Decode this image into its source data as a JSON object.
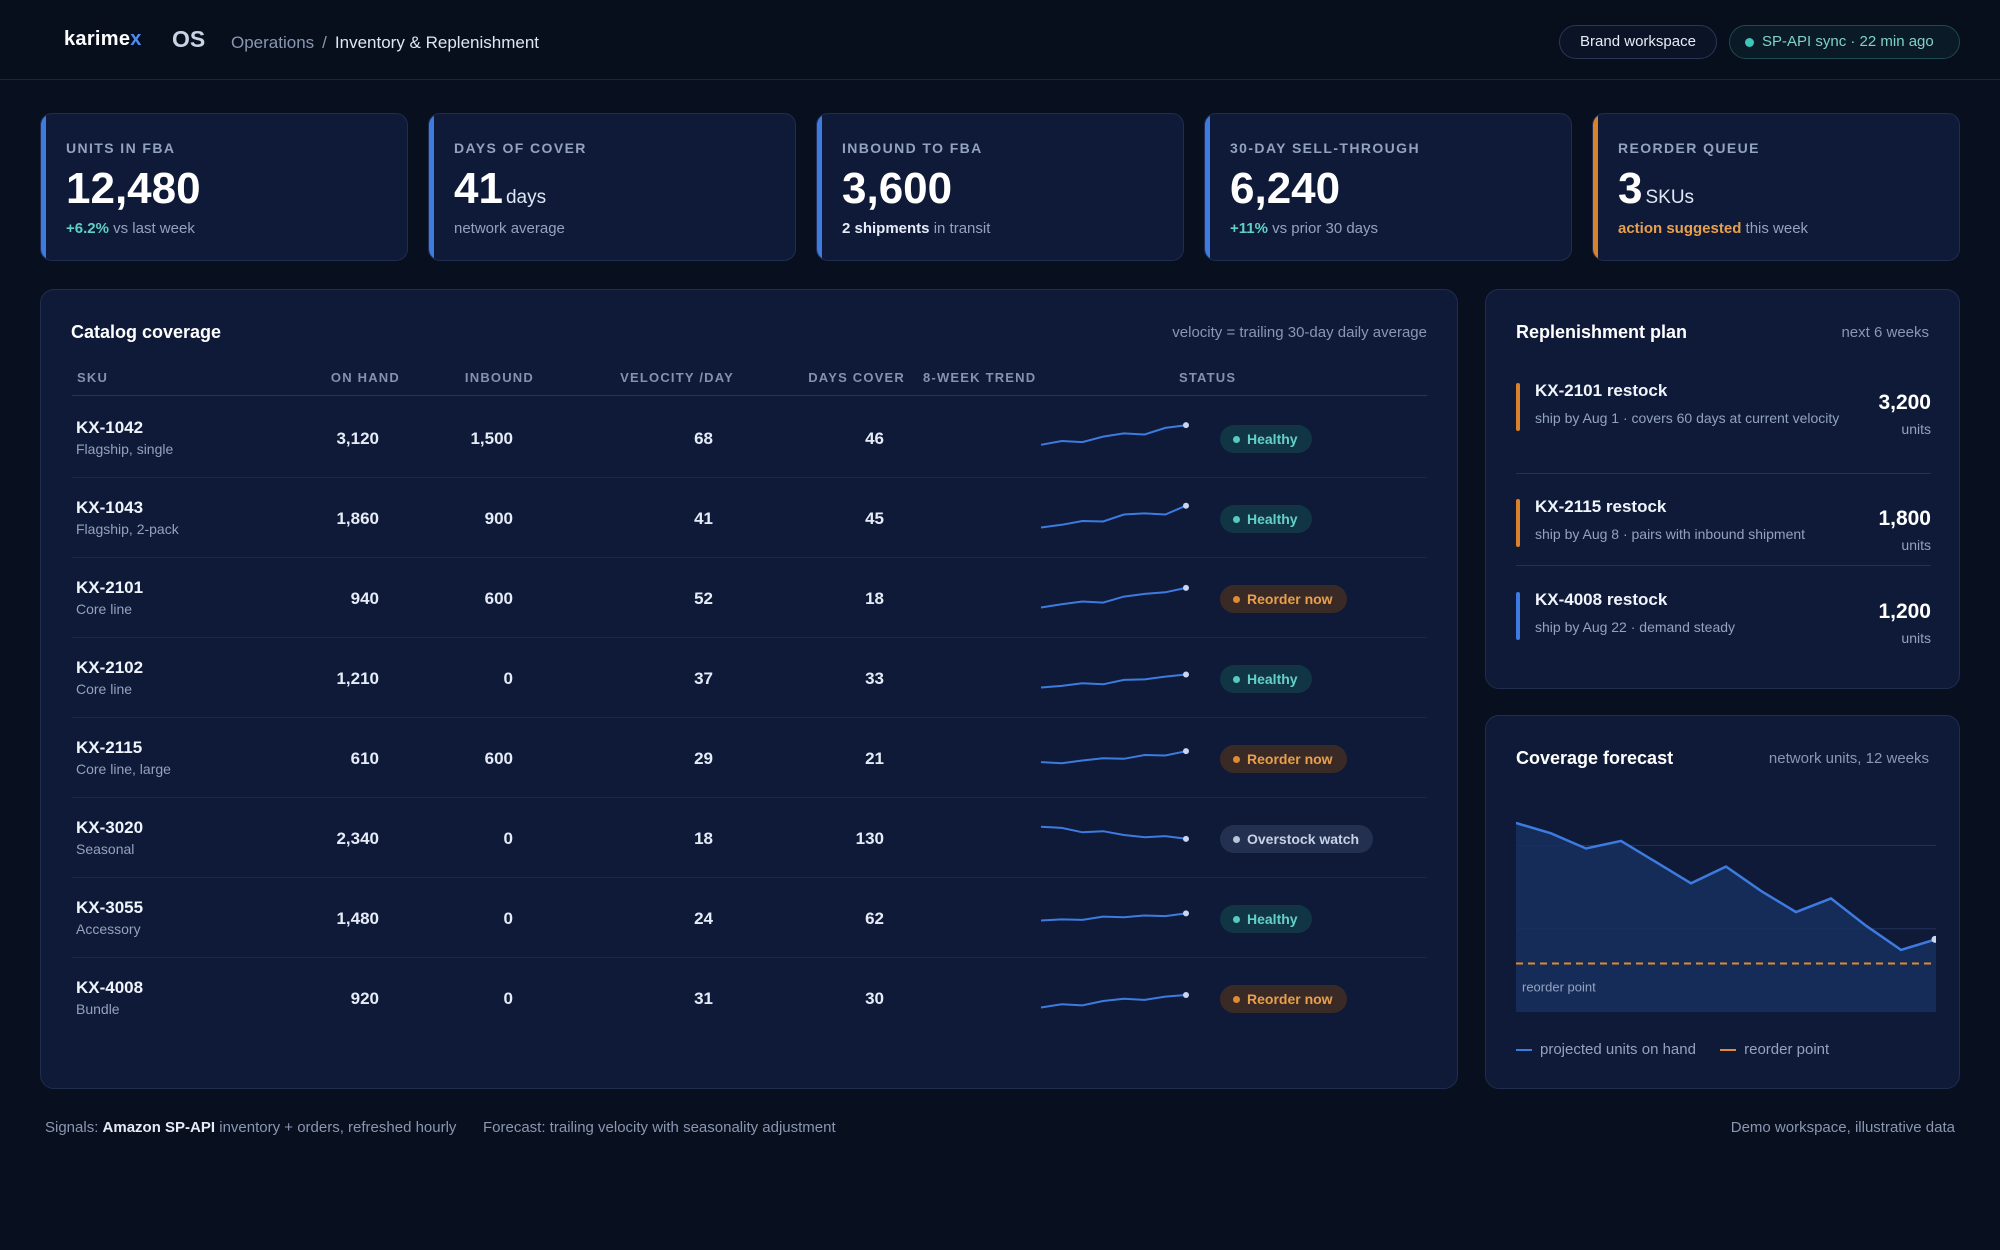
{
  "brand": {
    "name_main": "karime",
    "name_accent": "x",
    "os": "OS"
  },
  "breadcrumb": {
    "parent": "Operations",
    "separator": "/",
    "current": "Inventory & Replenishment"
  },
  "header": {
    "workspace": "Brand workspace",
    "sync": "SP-API sync · 22 min ago"
  },
  "kpis": [
    {
      "label": "UNITS IN FBA",
      "value": "12,480",
      "unit": "",
      "delta": "+6.2%",
      "sub": " vs last week"
    },
    {
      "label": "DAYS OF COVER",
      "value": "41",
      "unit": "days",
      "delta": "",
      "sub": "network average"
    },
    {
      "label": "INBOUND TO FBA",
      "value": "3,600",
      "unit": "",
      "strong": "2 shipments",
      "sub": " in transit"
    },
    {
      "label": "30-DAY SELL-THROUGH",
      "value": "6,240",
      "unit": "",
      "delta": "+11%",
      "sub": " vs prior 30 days"
    },
    {
      "label": "REORDER QUEUE",
      "value": "3",
      "unit": "SKUs",
      "warn": "action suggested",
      "sub": " this week"
    }
  ],
  "catalog": {
    "title": "Catalog coverage",
    "note": "velocity = trailing 30-day daily average",
    "columns": {
      "sku": "SKU",
      "on_hand": "ON HAND",
      "inbound": "INBOUND",
      "velocity": "VELOCITY /DAY",
      "days_cover": "DAYS COVER",
      "trend": "8-WEEK TREND",
      "status": "STATUS"
    },
    "rows": [
      {
        "sku": "KX-1042",
        "desc": "Flagship, single",
        "on_hand": "3,120",
        "inbound": "1,500",
        "velocity": "68",
        "days_cover": "46",
        "trend": [
          55,
          62,
          60,
          70,
          76,
          74,
          86,
          91
        ],
        "status": "Healthy",
        "status_type": "healthy"
      },
      {
        "sku": "KX-1043",
        "desc": "Flagship, 2-pack",
        "on_hand": "1,860",
        "inbound": "900",
        "velocity": "41",
        "days_cover": "45",
        "trend": [
          50,
          55,
          62,
          61,
          74,
          76,
          74,
          90
        ],
        "status": "Healthy",
        "status_type": "healthy"
      },
      {
        "sku": "KX-2101",
        "desc": "Core line",
        "on_hand": "940",
        "inbound": "600",
        "velocity": "52",
        "days_cover": "18",
        "trend": [
          50,
          56,
          61,
          59,
          70,
          75,
          78,
          86
        ],
        "status": "Reorder now",
        "status_type": "reorder"
      },
      {
        "sku": "KX-2102",
        "desc": "Core line",
        "on_hand": "1,210",
        "inbound": "0",
        "velocity": "37",
        "days_cover": "33",
        "trend": [
          50,
          53,
          58,
          56,
          64,
          65,
          70,
          74
        ],
        "status": "Healthy",
        "status_type": "healthy"
      },
      {
        "sku": "KX-2115",
        "desc": "Core line, large",
        "on_hand": "610",
        "inbound": "600",
        "velocity": "29",
        "days_cover": "21",
        "trend": [
          60,
          58,
          63,
          67,
          66,
          73,
          72,
          80
        ],
        "status": "Reorder now",
        "status_type": "reorder"
      },
      {
        "sku": "KX-3020",
        "desc": "Seasonal",
        "on_hand": "2,340",
        "inbound": "0",
        "velocity": "18",
        "days_cover": "130",
        "trend": [
          88,
          86,
          78,
          80,
          73,
          69,
          71,
          66
        ],
        "status": "Overstock watch",
        "status_type": "over"
      },
      {
        "sku": "KX-3055",
        "desc": "Accessory",
        "on_hand": "1,480",
        "inbound": "0",
        "velocity": "24",
        "days_cover": "62",
        "trend": [
          63,
          65,
          64,
          70,
          69,
          72,
          71,
          76
        ],
        "status": "Healthy",
        "status_type": "healthy"
      },
      {
        "sku": "KX-4008",
        "desc": "Bundle",
        "on_hand": "920",
        "inbound": "0",
        "velocity": "31",
        "days_cover": "30",
        "trend": [
          50,
          56,
          54,
          62,
          66,
          64,
          70,
          73
        ],
        "status": "Reorder now",
        "status_type": "reorder"
      }
    ]
  },
  "replenishment": {
    "title": "Replenishment plan",
    "note": "next 6 weeks",
    "items": [
      {
        "title": "KX-2101 restock",
        "sub": "ship by Aug 1 · covers 60 days at current velocity",
        "value": "3,200",
        "unit": "units",
        "color": "#d9822b"
      },
      {
        "title": "KX-2115 restock",
        "sub": "ship by Aug 8 · pairs with inbound shipment",
        "value": "1,800",
        "unit": "units",
        "color": "#d9822b"
      },
      {
        "title": "KX-4008 restock",
        "sub": "ship by Aug 22 · demand steady",
        "value": "1,200",
        "unit": "units",
        "color": "#3d7be0"
      }
    ]
  },
  "forecast": {
    "title": "Coverage forecast",
    "note": "network units, 12 weeks",
    "reorder_label": "reorder point",
    "legend": {
      "projected": "projected units on hand",
      "reorder": "reorder point"
    },
    "colors": {
      "projected": "#3d7be0",
      "reorder": "#e28a2f",
      "fill": "#17305e"
    },
    "chart_data": {
      "type": "area",
      "x": [
        0,
        1,
        2,
        3,
        4,
        5,
        6,
        7,
        8,
        9,
        10,
        11,
        12
      ],
      "series": [
        {
          "name": "projected units on hand",
          "values": [
            12480,
            11800,
            10800,
            11300,
            9900,
            8500,
            9600,
            8000,
            6600,
            7500,
            5700,
            4100,
            4800
          ]
        }
      ],
      "reorder_point": 3200,
      "ylim": [
        0,
        14000
      ],
      "grid": true
    }
  },
  "footer": {
    "signals_prefix": "Signals: ",
    "signals_source": "Amazon SP-API",
    "signals_suffix": " inventory + orders, refreshed hourly",
    "forecast_text": "Forecast: trailing velocity with seasonality adjustment",
    "disclaimer": "Demo workspace, illustrative data"
  }
}
